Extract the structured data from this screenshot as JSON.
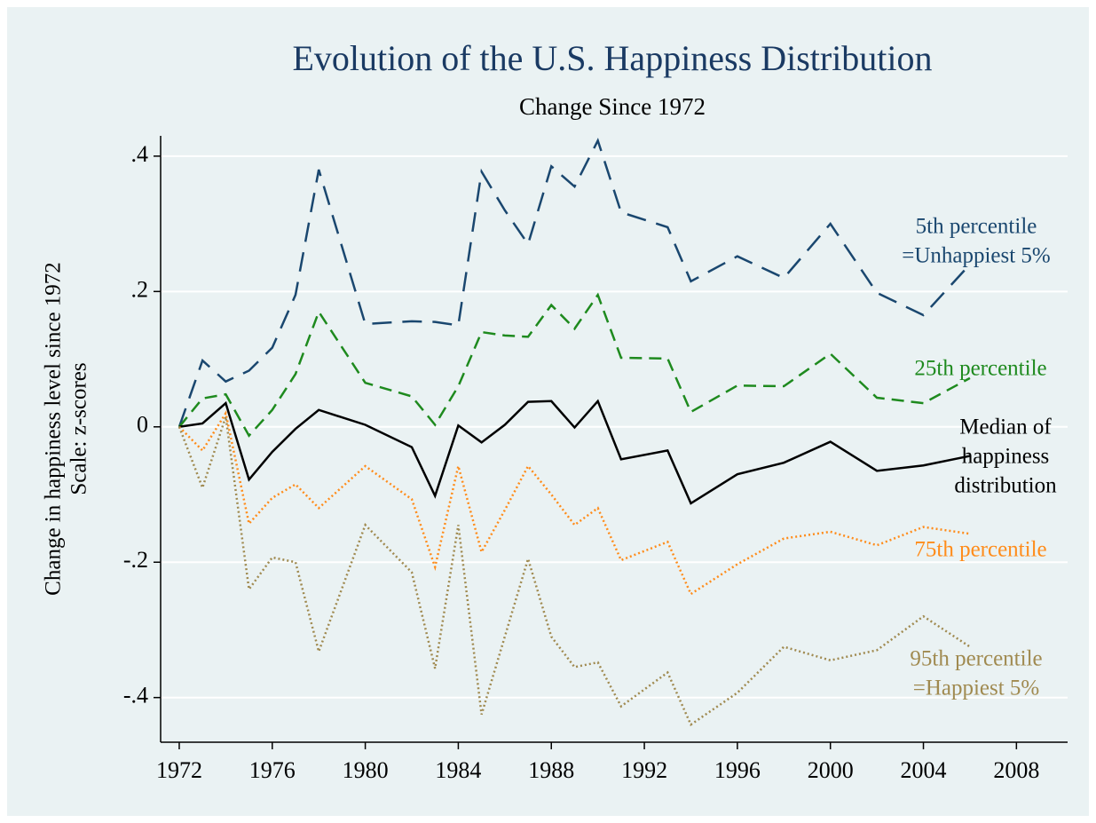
{
  "chart_data": {
    "type": "line",
    "title": "Evolution of the U.S. Happiness Distribution",
    "subtitle": "Change Since 1972",
    "y_label_lines": [
      "Change in happiness level since 1972",
      "Scale: z-scores"
    ],
    "x": [
      1972,
      1973,
      1974,
      1975,
      1976,
      1977,
      1978,
      1980,
      1982,
      1983,
      1984,
      1985,
      1986,
      1987,
      1988,
      1989,
      1990,
      1991,
      1993,
      1994,
      1996,
      1998,
      2000,
      2002,
      2004,
      2006
    ],
    "series": [
      {
        "label_lines": [
          "5th percentile",
          "=Unhappiest 5%"
        ],
        "color": "#1a476f",
        "dash": "22,12",
        "values": [
          0,
          0.098,
          0.067,
          0.083,
          0.117,
          0.195,
          0.38,
          0.152,
          0.156,
          0.155,
          0.15,
          0.377,
          0.32,
          0.27,
          0.385,
          0.355,
          0.423,
          0.317,
          0.295,
          0.215,
          0.252,
          0.22,
          0.3,
          0.198,
          0.165,
          0.24
        ]
      },
      {
        "label_lines": [
          "25th percentile"
        ],
        "color": "#1e8a1e",
        "dash": "14,8",
        "values": [
          0,
          0.042,
          0.048,
          -0.013,
          0.025,
          0.078,
          0.17,
          0.065,
          0.045,
          0.003,
          0.06,
          0.14,
          0.135,
          0.133,
          0.18,
          0.145,
          0.195,
          0.102,
          0.101,
          0.022,
          0.061,
          0.06,
          0.108,
          0.043,
          0.035,
          0.072
        ]
      },
      {
        "label_lines": [
          "Median of",
          "happiness",
          "distribution"
        ],
        "color": "#000000",
        "dash": "none",
        "values": [
          0,
          0.005,
          0.035,
          -0.078,
          -0.037,
          -0.003,
          0.025,
          0.003,
          -0.03,
          -0.102,
          0.002,
          -0.023,
          0.003,
          0.037,
          0.038,
          -0.001,
          0.038,
          -0.048,
          -0.035,
          -0.113,
          -0.07,
          -0.053,
          -0.022,
          -0.065,
          -0.057,
          -0.043
        ]
      },
      {
        "label_lines": [
          "75th percentile"
        ],
        "color": "#ff8c1a",
        "dash": "2,3",
        "values": [
          0,
          -0.035,
          0.02,
          -0.143,
          -0.105,
          -0.085,
          -0.12,
          -0.058,
          -0.107,
          -0.207,
          -0.058,
          -0.185,
          -0.123,
          -0.058,
          -0.1,
          -0.145,
          -0.12,
          -0.197,
          -0.17,
          -0.247,
          -0.203,
          -0.165,
          -0.155,
          -0.175,
          -0.148,
          -0.158
        ]
      },
      {
        "label_lines": [
          "95th percentile",
          "=Happiest 5%"
        ],
        "color": "#a08a50",
        "dash": "2,3",
        "values": [
          0,
          -0.09,
          0.015,
          -0.24,
          -0.193,
          -0.2,
          -0.332,
          -0.145,
          -0.215,
          -0.357,
          -0.145,
          -0.425,
          -0.31,
          -0.195,
          -0.31,
          -0.355,
          -0.348,
          -0.413,
          -0.363,
          -0.44,
          -0.393,
          -0.325,
          -0.345,
          -0.33,
          -0.28,
          -0.325
        ]
      }
    ],
    "xlim": [
      1971.2,
      2010.2
    ],
    "xticks": [
      1972,
      1976,
      1980,
      1984,
      1988,
      1992,
      1996,
      2000,
      2004,
      2008
    ],
    "ylim": [
      -0.466,
      0.43
    ],
    "yticks": [
      {
        "value": -0.4,
        "label": "-.4"
      },
      {
        "value": -0.2,
        "label": "-.2"
      },
      0,
      {
        "value": 0.2,
        "label": ".2"
      },
      {
        "value": 0.4,
        "label": ".4"
      }
    ],
    "grid": true
  }
}
